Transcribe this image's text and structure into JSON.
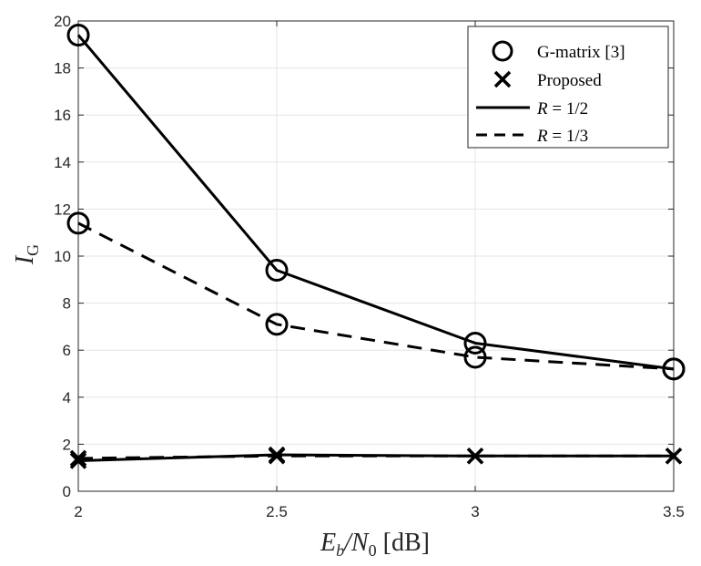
{
  "chart_data": {
    "type": "line",
    "xlabel": {
      "main": "E",
      "sub1": "b",
      "mid": "/N",
      "sub2": "0",
      "unit": " [dB]"
    },
    "ylabel": {
      "main": "I",
      "sub": "G"
    },
    "xlim": [
      2,
      3.5
    ],
    "ylim": [
      0,
      20
    ],
    "x_ticks": [
      "2",
      "2.5",
      "3",
      "3.5"
    ],
    "y_ticks": [
      "0",
      "2",
      "4",
      "6",
      "8",
      "10",
      "12",
      "14",
      "16",
      "18",
      "20"
    ],
    "grid": true,
    "x": [
      2,
      2.5,
      3,
      3.5
    ],
    "series": [
      {
        "name": "G-matrix [3], R = 1/2",
        "marker": "circle",
        "linestyle": "solid",
        "values": [
          19.4,
          9.4,
          6.3,
          5.2
        ]
      },
      {
        "name": "G-matrix [3], R = 1/3",
        "marker": "circle",
        "linestyle": "dashed",
        "values": [
          11.4,
          7.1,
          5.7,
          5.2
        ]
      },
      {
        "name": "Proposed, R = 1/2",
        "marker": "x",
        "linestyle": "solid",
        "values": [
          1.3,
          1.55,
          1.5,
          1.5
        ]
      },
      {
        "name": "Proposed, R = 1/3",
        "marker": "x",
        "linestyle": "dashed",
        "values": [
          1.4,
          1.5,
          1.5,
          1.5
        ]
      }
    ],
    "legend": {
      "position": "top-right",
      "entries": [
        {
          "kind": "circle",
          "label": "G-matrix [3]"
        },
        {
          "kind": "x",
          "label": "Proposed"
        },
        {
          "kind": "solid",
          "label_var": "R",
          "label_val": " = 1/2"
        },
        {
          "kind": "dashed",
          "label_var": "R",
          "label_val": " = 1/3"
        }
      ]
    },
    "colors": {
      "line": "#000000",
      "grid": "#e6e6e6",
      "axis": "#262626"
    }
  }
}
